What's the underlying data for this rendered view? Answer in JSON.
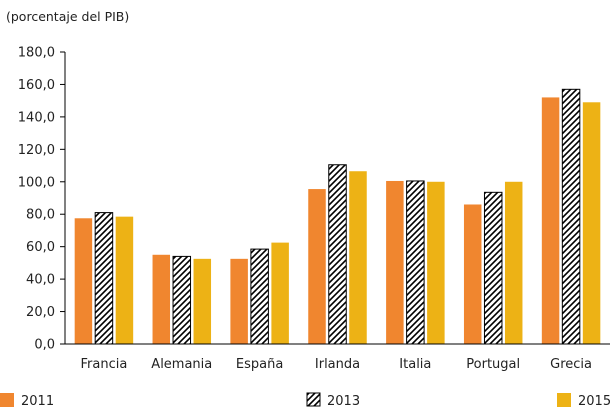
{
  "chart_data": {
    "type": "bar",
    "unit_note": "(porcentaje del PIB)",
    "categories": [
      "Francia",
      "Alemania",
      "España",
      "Irlanda",
      "Italia",
      "Portugal",
      "Grecia"
    ],
    "series": [
      {
        "name": "2011",
        "color": "#F0862F",
        "pattern": "solid",
        "values": [
          77.5,
          55,
          52.5,
          95.5,
          100.5,
          86,
          152
        ]
      },
      {
        "name": "2013",
        "color": "#000000",
        "pattern": "diagonal-hatch",
        "values": [
          81,
          54,
          58.5,
          110.5,
          100.5,
          93.5,
          157
        ]
      },
      {
        "name": "2015",
        "color": "#EDB215",
        "pattern": "solid",
        "values": [
          78.5,
          52.5,
          62.5,
          106.5,
          100,
          100,
          149
        ]
      }
    ],
    "ylim": [
      0,
      180
    ],
    "yticks": [
      "0,0",
      "20,0",
      "40,0",
      "60,0",
      "80,0",
      "100,0",
      "120,0",
      "140,0",
      "160,0",
      "180,0"
    ],
    "grid": false,
    "legend_position": "bottom"
  }
}
